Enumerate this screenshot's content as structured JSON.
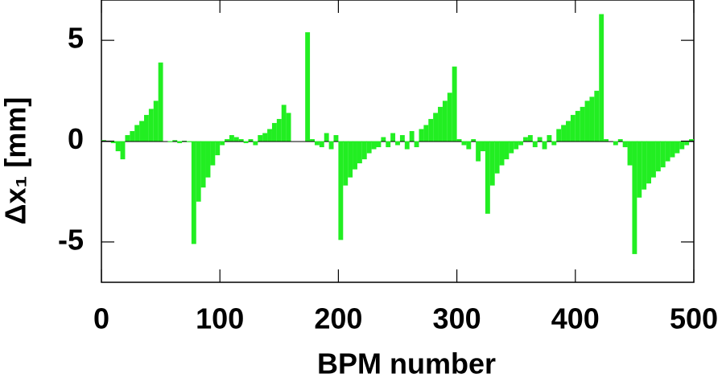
{
  "chart_data": {
    "type": "bar",
    "x_label": "BPM number",
    "y_label": "Δx₁ [mm]",
    "color": "#22ee22",
    "x": [
      2,
      6,
      10,
      14,
      18,
      22,
      26,
      30,
      34,
      38,
      42,
      46,
      50,
      54,
      58,
      62,
      66,
      70,
      74,
      78,
      82,
      86,
      90,
      94,
      98,
      102,
      106,
      110,
      114,
      118,
      122,
      126,
      130,
      134,
      138,
      142,
      146,
      150,
      154,
      158,
      162,
      166,
      170,
      174,
      178,
      182,
      186,
      190,
      194,
      198,
      202,
      206,
      210,
      214,
      218,
      222,
      226,
      230,
      234,
      238,
      242,
      246,
      250,
      254,
      258,
      262,
      266,
      270,
      274,
      278,
      282,
      286,
      290,
      294,
      298,
      302,
      306,
      310,
      314,
      318,
      322,
      326,
      330,
      334,
      338,
      342,
      346,
      350,
      354,
      358,
      362,
      366,
      370,
      374,
      378,
      382,
      386,
      390,
      394,
      398,
      402,
      406,
      410,
      414,
      418,
      422,
      426,
      430,
      434,
      438,
      442,
      446,
      450,
      454,
      458,
      462,
      466,
      470,
      474,
      478,
      482,
      486,
      490,
      494,
      498
    ],
    "values": [
      0.05,
      0.02,
      -0.1,
      -0.5,
      -0.9,
      0.3,
      0.5,
      0.8,
      1.0,
      1.3,
      1.6,
      2.0,
      3.9,
      0,
      -0.05,
      0.05,
      -0.1,
      0.02,
      -0.05,
      -5.1,
      -3.0,
      -2.3,
      -1.8,
      -1.2,
      -0.7,
      -0.2,
      0.1,
      0.3,
      0.2,
      0.1,
      -0.1,
      0.1,
      -0.2,
      0.3,
      0.4,
      0.6,
      0.9,
      1.1,
      1.8,
      1.4,
      0,
      0,
      0,
      5.4,
      0.1,
      -0.2,
      -0.3,
      0.4,
      -0.4,
      0.3,
      -4.9,
      -2.2,
      -1.8,
      -1.4,
      -1.1,
      -0.9,
      -0.6,
      -0.4,
      -0.3,
      0.2,
      -0.3,
      0.4,
      -0.2,
      0.3,
      -0.4,
      0.5,
      -0.3,
      0.6,
      0.8,
      1.1,
      1.4,
      1.7,
      2.0,
      2.4,
      3.7,
      0.1,
      -0.2,
      -0.4,
      0.1,
      -1.0,
      -0.5,
      -3.6,
      -2.2,
      -1.6,
      -1.2,
      -0.9,
      -0.6,
      -0.4,
      -0.2,
      0.2,
      0.3,
      -0.3,
      0.2,
      -0.4,
      0.3,
      -0.2,
      0.6,
      0.8,
      1.0,
      1.3,
      1.5,
      1.7,
      2.0,
      2.2,
      2.5,
      6.3,
      0.1,
      0,
      -0.2,
      0.1,
      -0.3,
      -1.2,
      -5.6,
      -2.8,
      -2.4,
      -2.1,
      -1.8,
      -1.5,
      -1.3,
      -1.0,
      -0.8,
      -0.6,
      -0.4,
      -0.2,
      0.1
    ],
    "bar_width": 4,
    "xlim": [
      0,
      500
    ],
    "xticks": [
      0,
      100,
      200,
      300,
      400,
      500
    ],
    "ylim": [
      -7,
      7
    ],
    "yticks": [
      -5,
      0,
      5
    ]
  }
}
